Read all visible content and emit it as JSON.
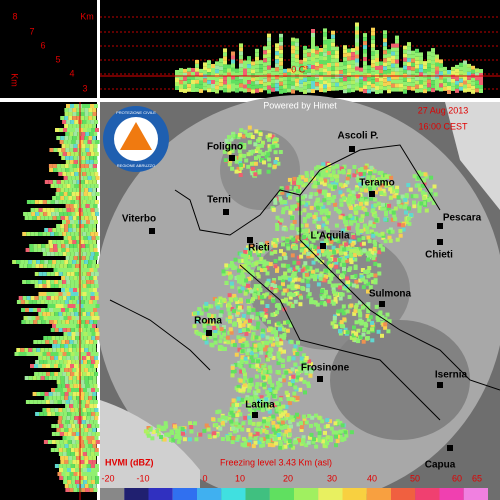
{
  "altitude_scale": {
    "unit": "Km",
    "levels": [
      "8",
      "7",
      "6",
      "5",
      "4",
      "3"
    ]
  },
  "side_unit": "Km",
  "freezing_marker": "0 C°",
  "header": {
    "credit": "Powered by Himet",
    "date": "27 Aug 2013",
    "time": "16:00 CEST"
  },
  "logo": {
    "line1": "PROTEZIONE CIVILE",
    "line2": "REGIONE ABRUZZO"
  },
  "cities": [
    "Foligno",
    "Ascoli P.",
    "Teramo",
    "Terni",
    "Viterbo",
    "Pescara",
    "Rieti",
    "L'Aquila",
    "Chieti",
    "Sulmona",
    "Roma",
    "Frosinone",
    "Isernia",
    "Latina",
    "Capua"
  ],
  "legend": {
    "title": "HVMI (dBZ)",
    "freezing_level": "Freezing level 3.43 Km (asl)",
    "scale": [
      -20,
      -10,
      0,
      10,
      20,
      30,
      40,
      50,
      60,
      65
    ]
  }
}
